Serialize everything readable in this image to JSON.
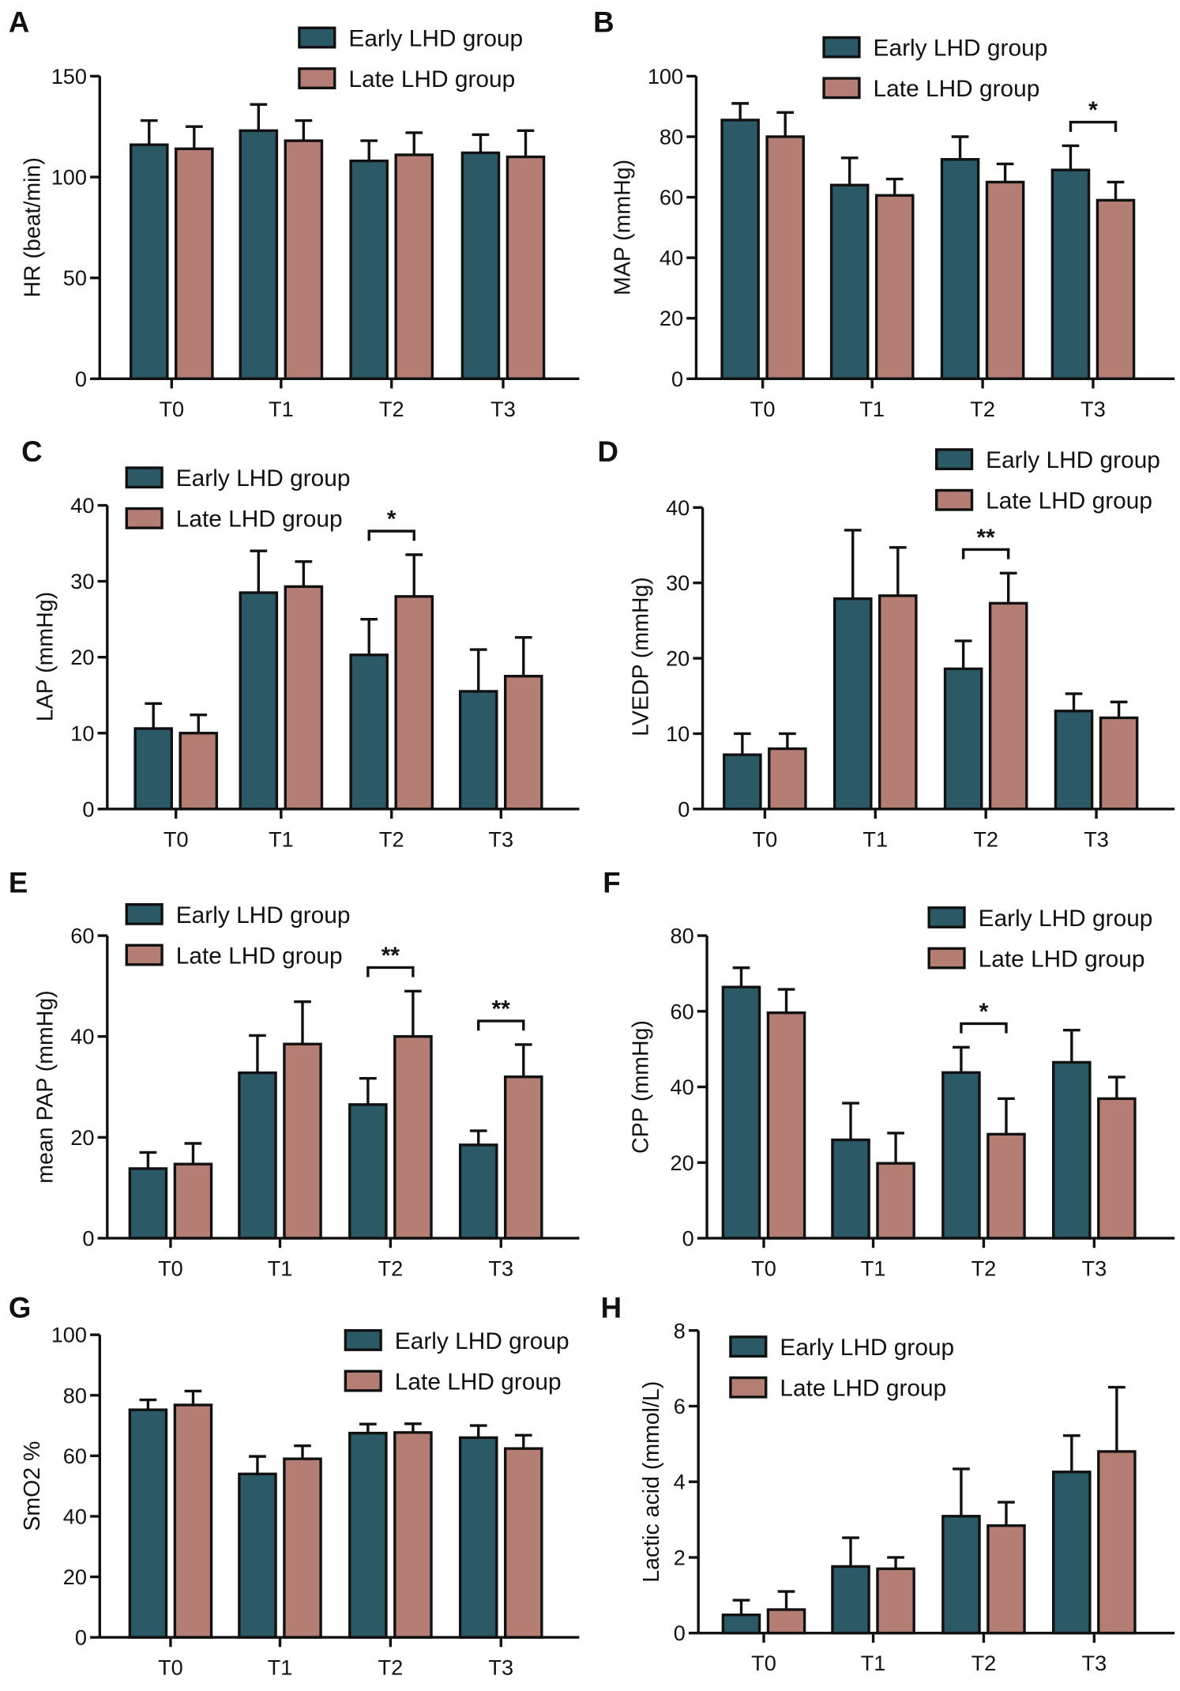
{
  "colors": {
    "early": "#2b5a66",
    "late": "#b47e74",
    "axis": "#111111"
  },
  "chart_data": [
    {
      "panel": "A",
      "type": "bar",
      "ylabel": "HR (beat/min)",
      "ylim": [
        0,
        150
      ],
      "yticks": [
        0,
        50,
        100,
        150
      ],
      "categories": [
        "T0",
        "T1",
        "T2",
        "T3"
      ],
      "series": [
        {
          "name": "Early LHD group",
          "values": [
            116,
            123,
            108,
            112
          ],
          "error_upper": [
            128,
            136,
            118,
            121
          ]
        },
        {
          "name": "Late LHD group",
          "values": [
            114,
            118,
            111,
            110
          ],
          "error_upper": [
            125,
            128,
            122,
            123
          ]
        }
      ],
      "significance": []
    },
    {
      "panel": "B",
      "type": "bar",
      "ylabel": "MAP (mmHg)",
      "ylim": [
        0,
        100
      ],
      "yticks": [
        0,
        20,
        40,
        60,
        80,
        100
      ],
      "categories": [
        "T0",
        "T1",
        "T2",
        "T3"
      ],
      "series": [
        {
          "name": "Early LHD group",
          "values": [
            85.5,
            64,
            72.5,
            69
          ],
          "error_upper": [
            91,
            73,
            80,
            77
          ]
        },
        {
          "name": "Late LHD group",
          "values": [
            80,
            60.6,
            65,
            59
          ],
          "error_upper": [
            88,
            66,
            71,
            65
          ]
        }
      ],
      "significance": [
        {
          "category": "T3",
          "label": "*"
        }
      ]
    },
    {
      "panel": "C",
      "type": "bar",
      "ylabel": "LAP (mmHg)",
      "ylim": [
        0,
        40
      ],
      "yticks": [
        0,
        10,
        20,
        30,
        40
      ],
      "categories": [
        "T0",
        "T1",
        "T2",
        "T3"
      ],
      "series": [
        {
          "name": "Early LHD group",
          "values": [
            10.6,
            28.5,
            20.3,
            15.5
          ],
          "error_upper": [
            13.9,
            34,
            25,
            21
          ]
        },
        {
          "name": "Late LHD group",
          "values": [
            10,
            29.3,
            28,
            17.5
          ],
          "error_upper": [
            12.4,
            32.6,
            33.5,
            22.6
          ]
        }
      ],
      "significance": [
        {
          "category": "T2",
          "label": "*"
        }
      ]
    },
    {
      "panel": "D",
      "type": "bar",
      "ylabel": "LVEDP (mmHg)",
      "ylim": [
        0,
        40
      ],
      "yticks": [
        0,
        10,
        20,
        30,
        40
      ],
      "categories": [
        "T0",
        "T1",
        "T2",
        "T3"
      ],
      "series": [
        {
          "name": "Early LHD group",
          "values": [
            7.2,
            27.9,
            18.6,
            13
          ],
          "error_upper": [
            10,
            37,
            22.3,
            15.3
          ]
        },
        {
          "name": "Late LHD group",
          "values": [
            8,
            28.3,
            27.3,
            12.1
          ],
          "error_upper": [
            10,
            34.7,
            31.3,
            14.2
          ]
        }
      ],
      "significance": [
        {
          "category": "T2",
          "label": "**"
        }
      ]
    },
    {
      "panel": "E",
      "type": "bar",
      "ylabel": "mean PAP (mmHg)",
      "ylim": [
        0,
        60
      ],
      "yticks": [
        0,
        20,
        40,
        60
      ],
      "categories": [
        "T0",
        "T1",
        "T2",
        "T3"
      ],
      "series": [
        {
          "name": "Early LHD group",
          "values": [
            13.8,
            32.8,
            26.5,
            18.5
          ],
          "error_upper": [
            17,
            40.2,
            31.7,
            21.3
          ]
        },
        {
          "name": "Late LHD group",
          "values": [
            14.7,
            38.5,
            40,
            32
          ],
          "error_upper": [
            18.8,
            46.9,
            49,
            38.4
          ]
        }
      ],
      "significance": [
        {
          "category": "T2",
          "label": "**"
        },
        {
          "category": "T3",
          "label": "**"
        }
      ]
    },
    {
      "panel": "F",
      "type": "bar",
      "ylabel": "CPP (mmHg)",
      "ylim": [
        0,
        80
      ],
      "yticks": [
        0,
        20,
        40,
        60,
        80
      ],
      "categories": [
        "T0",
        "T1",
        "T2",
        "T3"
      ],
      "series": [
        {
          "name": "Early LHD group",
          "values": [
            66.4,
            26,
            43.8,
            46.5
          ],
          "error_upper": [
            71.5,
            35.7,
            50.5,
            55
          ]
        },
        {
          "name": "Late LHD group",
          "values": [
            59.6,
            19.8,
            27.5,
            36.9
          ],
          "error_upper": [
            65.8,
            27.8,
            36.9,
            42.6
          ]
        }
      ],
      "significance": [
        {
          "category": "T2",
          "label": "*"
        }
      ]
    },
    {
      "panel": "G",
      "type": "bar",
      "ylabel": "SmO2 %",
      "ylim": [
        0,
        100
      ],
      "yticks": [
        0,
        20,
        40,
        60,
        80,
        100
      ],
      "categories": [
        "T0",
        "T1",
        "T2",
        "T3"
      ],
      "series": [
        {
          "name": "Early LHD group",
          "values": [
            75.2,
            54,
            67.5,
            66
          ],
          "error_upper": [
            78.5,
            59.8,
            70.5,
            70
          ]
        },
        {
          "name": "Late LHD group",
          "values": [
            76.8,
            59,
            67.7,
            62.4
          ],
          "error_upper": [
            81.4,
            63.3,
            70.6,
            66.8
          ]
        }
      ],
      "significance": []
    },
    {
      "panel": "H",
      "type": "bar",
      "ylabel": "Lactic acid (mmol/L)",
      "ylim": [
        0,
        8
      ],
      "yticks": [
        0,
        2,
        4,
        6,
        8
      ],
      "categories": [
        "T0",
        "T1",
        "T2",
        "T3"
      ],
      "series": [
        {
          "name": "Early LHD group",
          "values": [
            0.48,
            1.76,
            3.09,
            4.26
          ],
          "error_upper": [
            0.87,
            2.52,
            4.34,
            5.22
          ]
        },
        {
          "name": "Late LHD group",
          "values": [
            0.62,
            1.7,
            2.84,
            4.8
          ],
          "error_upper": [
            1.1,
            2.0,
            3.46,
            6.5
          ]
        }
      ],
      "significance": []
    }
  ]
}
